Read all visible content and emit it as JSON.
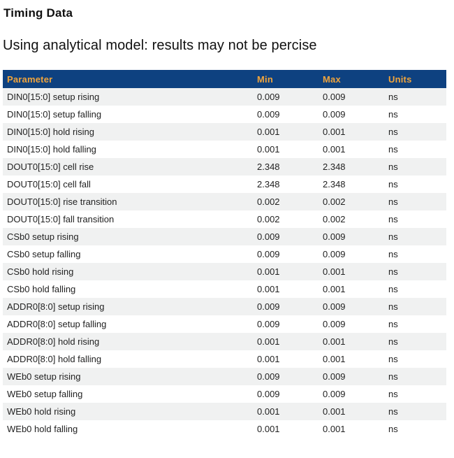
{
  "page": {
    "title": "Timing Data",
    "subtitle": "Using analytical model: results may not be percise"
  },
  "table": {
    "columns": [
      "Parameter",
      "Min",
      "Max",
      "Units"
    ],
    "rows": [
      {
        "parameter": "DIN0[15:0] setup rising",
        "min": "0.009",
        "max": "0.009",
        "units": "ns"
      },
      {
        "parameter": "DIN0[15:0] setup falling",
        "min": "0.009",
        "max": "0.009",
        "units": "ns"
      },
      {
        "parameter": "DIN0[15:0] hold rising",
        "min": "0.001",
        "max": "0.001",
        "units": "ns"
      },
      {
        "parameter": "DIN0[15:0] hold falling",
        "min": "0.001",
        "max": "0.001",
        "units": "ns"
      },
      {
        "parameter": "DOUT0[15:0] cell rise",
        "min": "2.348",
        "max": "2.348",
        "units": "ns"
      },
      {
        "parameter": "DOUT0[15:0] cell fall",
        "min": "2.348",
        "max": "2.348",
        "units": "ns"
      },
      {
        "parameter": "DOUT0[15:0] rise transition",
        "min": "0.002",
        "max": "0.002",
        "units": "ns"
      },
      {
        "parameter": "DOUT0[15:0] fall transition",
        "min": "0.002",
        "max": "0.002",
        "units": "ns"
      },
      {
        "parameter": "CSb0 setup rising",
        "min": "0.009",
        "max": "0.009",
        "units": "ns"
      },
      {
        "parameter": "CSb0 setup falling",
        "min": "0.009",
        "max": "0.009",
        "units": "ns"
      },
      {
        "parameter": "CSb0 hold rising",
        "min": "0.001",
        "max": "0.001",
        "units": "ns"
      },
      {
        "parameter": "CSb0 hold falling",
        "min": "0.001",
        "max": "0.001",
        "units": "ns"
      },
      {
        "parameter": "ADDR0[8:0] setup rising",
        "min": "0.009",
        "max": "0.009",
        "units": "ns"
      },
      {
        "parameter": "ADDR0[8:0] setup falling",
        "min": "0.009",
        "max": "0.009",
        "units": "ns"
      },
      {
        "parameter": "ADDR0[8:0] hold rising",
        "min": "0.001",
        "max": "0.001",
        "units": "ns"
      },
      {
        "parameter": "ADDR0[8:0] hold falling",
        "min": "0.001",
        "max": "0.001",
        "units": "ns"
      },
      {
        "parameter": "WEb0 setup rising",
        "min": "0.009",
        "max": "0.009",
        "units": "ns"
      },
      {
        "parameter": "WEb0 setup falling",
        "min": "0.009",
        "max": "0.009",
        "units": "ns"
      },
      {
        "parameter": "WEb0 hold rising",
        "min": "0.001",
        "max": "0.001",
        "units": "ns"
      },
      {
        "parameter": "WEb0 hold falling",
        "min": "0.001",
        "max": "0.001",
        "units": "ns"
      }
    ]
  },
  "colors": {
    "header_bg": "#0e4180",
    "header_text": "#f0a43c",
    "row_stripe": "#f0f1f1",
    "row_text": "#222222"
  }
}
